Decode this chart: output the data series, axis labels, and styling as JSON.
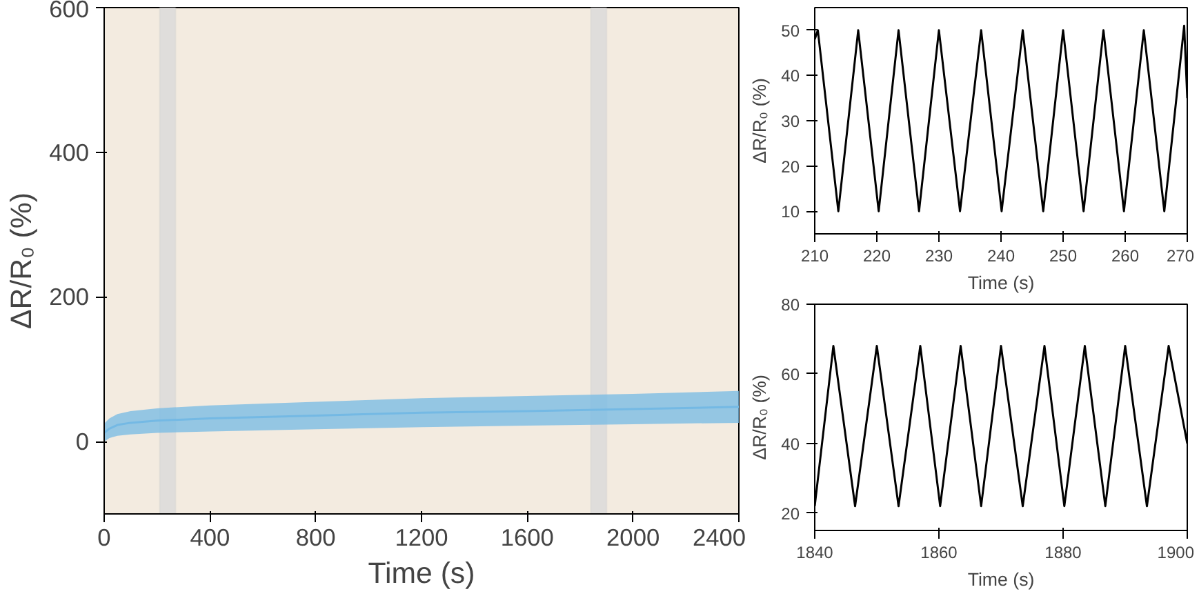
{
  "chart_data": [
    {
      "type": "line",
      "xlabel": "Time (s)",
      "ylabel": "ΔR/R₀ (%)",
      "xlim": [
        0,
        2400
      ],
      "ylim": [
        -100,
        600
      ],
      "xticks": [
        0,
        400,
        800,
        1200,
        1600,
        2000,
        2400
      ],
      "yticks": [
        0,
        200,
        400,
        600
      ],
      "grid": false,
      "series": [
        {
          "color": "#74b9e4",
          "x": [
            0,
            20,
            50,
            100,
            200,
            400,
            800,
            1200,
            1600,
            2000,
            2400
          ],
          "values": [
            12,
            18,
            23,
            26,
            29,
            32,
            36,
            40,
            42,
            45,
            48
          ],
          "lower": [
            0,
            5,
            8,
            10,
            12,
            14,
            17,
            20,
            22,
            24,
            26
          ],
          "upper": [
            25,
            32,
            38,
            42,
            46,
            50,
            55,
            60,
            63,
            66,
            70
          ]
        }
      ],
      "bands": [
        {
          "axis": "x",
          "from": 210,
          "to": 270,
          "color": "#d9d9d9"
        },
        {
          "axis": "x",
          "from": 1840,
          "to": 1900,
          "color": "#d9d9d9"
        }
      ]
    },
    {
      "type": "line",
      "xlabel": "Time (s)",
      "ylabel": "ΔR/R₀ (%)",
      "xlim": [
        210,
        270
      ],
      "ylim": [
        5,
        55
      ],
      "xticks": [
        210,
        220,
        230,
        240,
        250,
        260,
        270
      ],
      "yticks": [
        10,
        20,
        30,
        40,
        50
      ],
      "grid": false,
      "series": [
        {
          "color": "#000000",
          "x": [
            210,
            210.5,
            213.8,
            217,
            220.3,
            223.5,
            226.8,
            230,
            233.4,
            236.8,
            240.1,
            243.5,
            246.8,
            250,
            253.3,
            256.5,
            259.8,
            263,
            266.3,
            269.5,
            270
          ],
          "values": [
            48,
            50,
            10,
            50,
            10,
            50,
            10,
            50,
            10,
            50,
            10,
            50,
            10,
            50,
            10,
            50,
            10,
            50,
            10,
            51,
            35
          ]
        }
      ]
    },
    {
      "type": "line",
      "xlabel": "Time (s)",
      "ylabel": "ΔR/R₀ (%)",
      "xlim": [
        1840,
        1900
      ],
      "ylim": [
        15,
        80
      ],
      "xticks": [
        1840,
        1860,
        1880,
        1900
      ],
      "yticks": [
        20,
        40,
        60,
        80
      ],
      "grid": false,
      "series": [
        {
          "color": "#000000",
          "x": [
            1840,
            1843,
            1846.5,
            1850,
            1853.5,
            1857,
            1860.2,
            1863.5,
            1866.8,
            1870,
            1873.5,
            1877,
            1880.2,
            1883.5,
            1886.8,
            1890,
            1893.5,
            1897,
            1900
          ],
          "values": [
            22,
            68,
            22,
            68,
            22,
            68,
            22,
            68,
            22,
            68,
            22,
            68,
            22,
            68,
            22,
            68,
            22,
            68,
            40
          ]
        }
      ]
    }
  ]
}
